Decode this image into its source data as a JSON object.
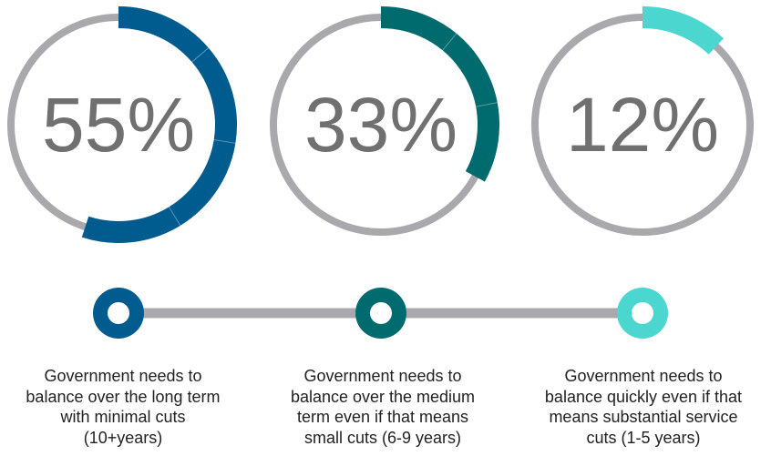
{
  "chart_data": {
    "type": "pie",
    "style": "progress-rings",
    "track_color": "#a9a9ad",
    "connector_color": "#a9a9ad",
    "items": [
      {
        "value": 55,
        "label": "55%",
        "color": "#005b8f",
        "caption_lines": [
          "Government needs to",
          "balance over the long term",
          "with minimal cuts",
          "(10+years)"
        ]
      },
      {
        "value": 33,
        "label": "33%",
        "color": "#006b6e",
        "caption_lines": [
          "Government needs to",
          "balance over the medium",
          "term even if that means",
          "small cuts (6-9 years)"
        ]
      },
      {
        "value": 12,
        "label": "12%",
        "color": "#4bd6cf",
        "caption_lines": [
          "Government needs to",
          "balance quickly even if that",
          "means substantial service",
          "cuts (1-5 years)"
        ]
      }
    ]
  }
}
